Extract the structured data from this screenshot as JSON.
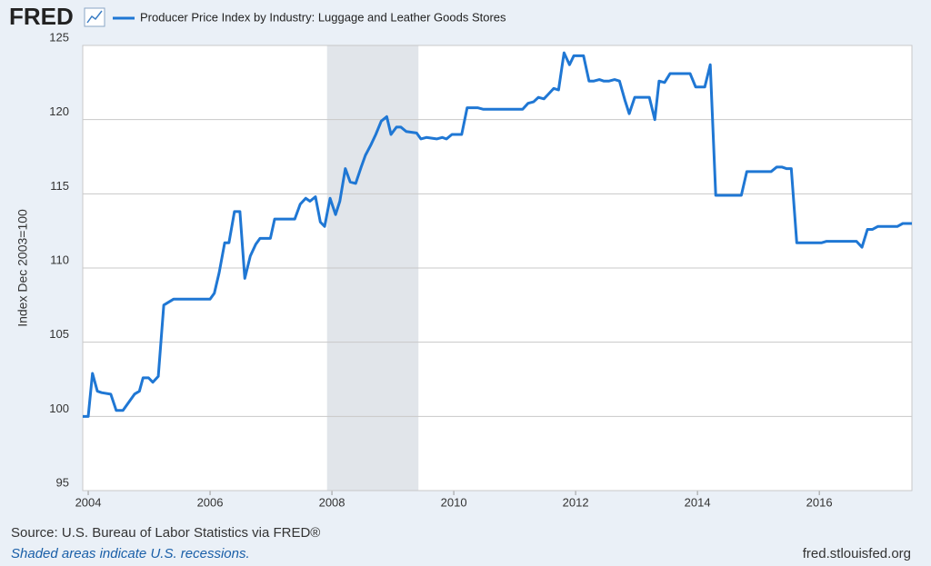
{
  "chart_data": {
    "type": "line",
    "logo": "FRED",
    "ylabel": "Index Dec 2003=100",
    "source": "Source: U.S. Bureau of Labor Statistics via FRED®",
    "note": "Shaded areas indicate U.S. recessions.",
    "url": "fred.stlouisfed.org",
    "xlim": [
      2003.91,
      2017.52
    ],
    "ylim": [
      95,
      125
    ],
    "xticks": [
      2004,
      2006,
      2008,
      2010,
      2012,
      2014,
      2016
    ],
    "yticks": [
      95,
      100,
      105,
      110,
      115,
      120,
      125
    ],
    "grid": true,
    "recessions": [
      {
        "start": 2007.92,
        "end": 2009.42,
        "color": "#e1e5ea"
      }
    ],
    "x": [
      2003.91,
      2004.0,
      2004.07,
      2004.15,
      2004.22,
      2004.37,
      2004.46,
      2004.57,
      2004.76,
      2004.84,
      2004.9,
      2004.99,
      2005.06,
      2005.15,
      2005.24,
      2005.4,
      2006.0,
      2006.07,
      2006.15,
      2006.24,
      2006.31,
      2006.4,
      2006.49,
      2006.57,
      2006.66,
      2006.75,
      2006.82,
      2006.99,
      2007.06,
      2007.39,
      2007.48,
      2007.57,
      2007.64,
      2007.73,
      2007.81,
      2007.88,
      2007.97,
      2008.06,
      2008.13,
      2008.22,
      2008.3,
      2008.39,
      2008.48,
      2008.55,
      2008.64,
      2008.72,
      2008.81,
      2008.9,
      2008.97,
      2009.06,
      2009.13,
      2009.22,
      2009.39,
      2009.46,
      2009.55,
      2009.72,
      2009.81,
      2009.88,
      2009.97,
      2010.13,
      2010.22,
      2010.39,
      2010.48,
      2011.13,
      2011.22,
      2011.31,
      2011.39,
      2011.48,
      2011.55,
      2011.64,
      2011.72,
      2011.81,
      2011.9,
      2011.97,
      2012.13,
      2012.22,
      2012.3,
      2012.39,
      2012.46,
      2012.55,
      2012.64,
      2012.72,
      2012.81,
      2012.88,
      2012.97,
      2013.21,
      2013.3,
      2013.37,
      2013.46,
      2013.55,
      2013.88,
      2013.97,
      2014.12,
      2014.21,
      2014.3,
      2014.72,
      2014.81,
      2015.21,
      2015.3,
      2015.39,
      2015.46,
      2015.54,
      2015.63,
      2016.04,
      2016.12,
      2016.61,
      2016.7,
      2016.79,
      2016.87,
      2016.96,
      2017.28,
      2017.37,
      2017.52
    ],
    "series": [
      {
        "name": "Producer Price Index by Industry: Luggage and Leather Goods Stores",
        "color": "#1f77d4",
        "values": [
          100.0,
          100.0,
          102.9,
          101.7,
          101.6,
          101.5,
          100.4,
          100.4,
          101.5,
          101.7,
          102.6,
          102.6,
          102.3,
          102.7,
          107.5,
          107.9,
          107.9,
          108.3,
          109.7,
          111.7,
          111.7,
          113.8,
          113.8,
          109.3,
          110.8,
          111.6,
          112.0,
          112.0,
          113.3,
          113.3,
          114.3,
          114.7,
          114.5,
          114.8,
          113.1,
          112.8,
          114.7,
          113.6,
          114.5,
          116.7,
          115.8,
          115.7,
          116.8,
          117.6,
          118.3,
          119.0,
          119.9,
          120.2,
          119.0,
          119.5,
          119.5,
          119.2,
          119.1,
          118.7,
          118.8,
          118.7,
          118.8,
          118.7,
          119.0,
          119.0,
          120.8,
          120.8,
          120.7,
          120.7,
          121.1,
          121.2,
          121.5,
          121.4,
          121.7,
          122.1,
          122.0,
          124.5,
          123.7,
          124.3,
          124.3,
          122.6,
          122.6,
          122.7,
          122.6,
          122.6,
          122.7,
          122.6,
          121.3,
          120.4,
          121.5,
          121.5,
          120.0,
          122.6,
          122.5,
          123.1,
          123.1,
          122.2,
          122.2,
          123.7,
          114.9,
          114.9,
          116.5,
          116.5,
          116.8,
          116.8,
          116.7,
          116.7,
          111.7,
          111.7,
          111.8,
          111.8,
          111.4,
          112.6,
          112.6,
          112.8,
          112.8,
          113.0,
          113.0
        ]
      }
    ]
  }
}
